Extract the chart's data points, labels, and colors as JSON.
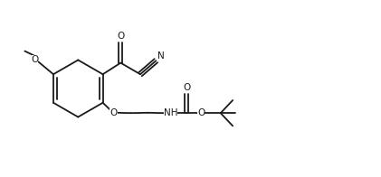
{
  "bg_color": "#ffffff",
  "line_color": "#1a1a1a",
  "line_width": 1.3,
  "font_size": 7.5,
  "fig_width": 4.21,
  "fig_height": 1.96,
  "dpi": 100,
  "xlim": [
    0,
    10.5
  ],
  "ylim": [
    0,
    4.9
  ]
}
